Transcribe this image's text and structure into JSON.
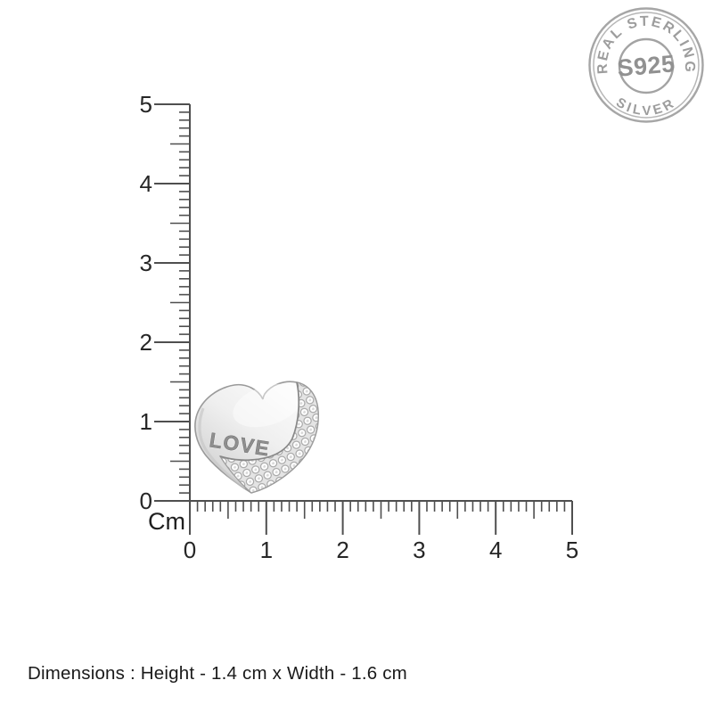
{
  "page": {
    "background": "#ffffff",
    "footer_text": "Dimensions : Height - 1.4 cm x Width - 1.6 cm"
  },
  "badge": {
    "top_text": "REAL STERLING",
    "bottom_text": "SILVER",
    "center_text": "S925",
    "color": "#9d9d9d"
  },
  "pendant": {
    "engraving": "LOVE"
  },
  "ruler": {
    "unit_label": "Cm",
    "vertical_labels": [
      "0",
      "1",
      "2",
      "3",
      "4",
      "5"
    ],
    "horizontal_labels": [
      "0",
      "1",
      "2",
      "3",
      "4",
      "5"
    ],
    "tick_color": "#4f4f4f",
    "number_color": "#262626"
  }
}
